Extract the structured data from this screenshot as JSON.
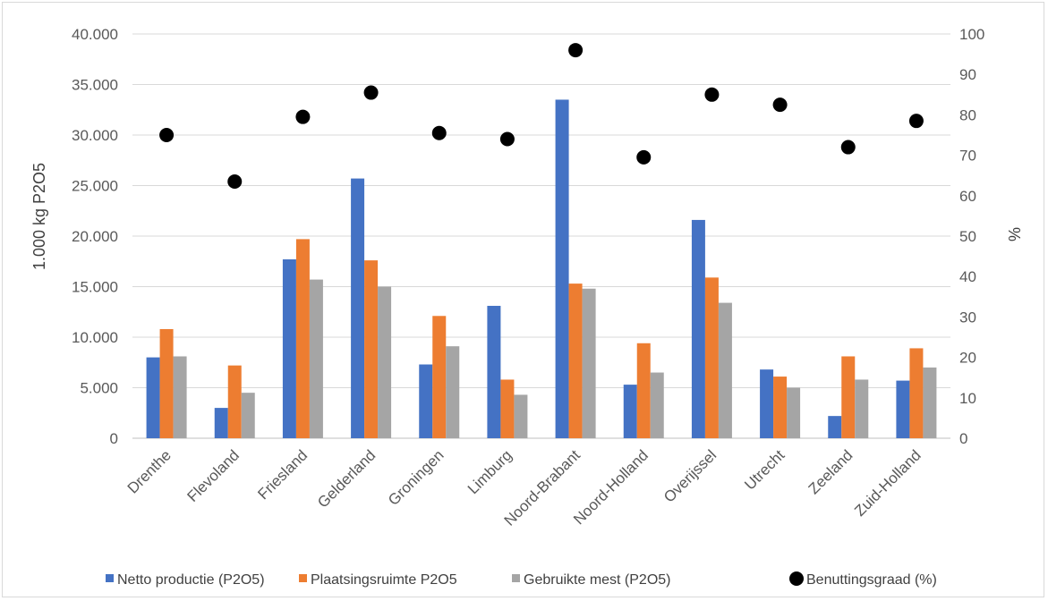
{
  "chart_data": {
    "type": "bar",
    "categories": [
      "Drenthe",
      "Flevoland",
      "Friesland",
      "Gelderland",
      "Groningen",
      "Limburg",
      "Noord-Brabant",
      "Noord-Holland",
      "Overijssel",
      "Utrecht",
      "Zeeland",
      "Zuid-Holland"
    ],
    "series": [
      {
        "name": "Netto productie (P2O5)",
        "type": "bar",
        "axis": "left",
        "color": "#4472c4",
        "values": [
          8000,
          3000,
          17700,
          25700,
          7300,
          13100,
          33500,
          5300,
          21600,
          6800,
          2200,
          5700
        ]
      },
      {
        "name": "Plaatsingsruimte P2O5",
        "type": "bar",
        "axis": "left",
        "color": "#ed7d31",
        "values": [
          10800,
          7200,
          19700,
          17600,
          12100,
          5800,
          15300,
          9400,
          15900,
          6100,
          8100,
          8900
        ]
      },
      {
        "name": "Gebruikte mest (P2O5)",
        "type": "bar",
        "axis": "left",
        "color": "#a5a5a5",
        "values": [
          8100,
          4500,
          15700,
          15000,
          9100,
          4300,
          14800,
          6500,
          13400,
          5000,
          5800,
          7000
        ]
      },
      {
        "name": "Benuttingsgraad (%)",
        "type": "scatter",
        "axis": "right",
        "color": "#000000",
        "values": [
          75,
          63.5,
          79.5,
          85.5,
          75.5,
          74,
          96,
          69.5,
          85,
          82.5,
          72,
          78.5
        ]
      }
    ],
    "ylabel": "1.000 kg P2O5",
    "y2label": "%",
    "ylim": [
      0,
      40000
    ],
    "y2lim": [
      0,
      100
    ],
    "yticks": [
      "0",
      "5.000",
      "10.000",
      "15.000",
      "20.000",
      "25.000",
      "30.000",
      "35.000",
      "40.000"
    ],
    "y2ticks": [
      "0",
      "10",
      "20",
      "30",
      "40",
      "50",
      "60",
      "70",
      "80",
      "90",
      "100"
    ],
    "grid": true,
    "legend": "bottom"
  }
}
